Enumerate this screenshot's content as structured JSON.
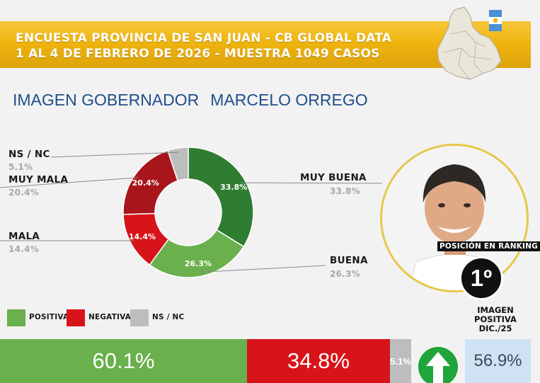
{
  "header": {
    "line1": "ENCUESTA PROVINCIA DE SAN JUAN - CB GLOBAL DATA",
    "line2": "1 AL 4 DE FEBRERO DE 2026 - MUESTRA 1049 CASOS"
  },
  "title": {
    "part1": "IMAGEN GOBERNADOR",
    "part2": "MARCELO ORREGO"
  },
  "colors": {
    "header_yellow": "#f0b40f",
    "muy_buena": "#2e7d32",
    "buena": "#6ab04c",
    "mala": "#d7141a",
    "muy_mala": "#a8151b",
    "ns_nc": "#bdbdbd",
    "title_blue": "#1f4e8c",
    "previous_box": "#cfe2f3"
  },
  "icons": [
    "san-juan-map-icon",
    "flag-icon",
    "up-arrow-icon"
  ],
  "chart_data": [
    {
      "type": "pie",
      "donut": true,
      "slices": [
        {
          "label": "MUY BUENA",
          "value": 33.8,
          "value_label": "33.8%",
          "color": "#2e7d32"
        },
        {
          "label": "BUENA",
          "value": 26.3,
          "value_label": "26.3%",
          "color": "#6ab04c"
        },
        {
          "label": "MALA",
          "value": 14.4,
          "value_label": "14.4%",
          "color": "#d7141a"
        },
        {
          "label": "MUY MALA",
          "value": 20.4,
          "value_label": "20.4%",
          "color": "#a8151b"
        },
        {
          "label": "NS / NC",
          "value": 5.1,
          "value_label": "5.1%",
          "color": "#bdbdbd"
        }
      ]
    },
    {
      "type": "bar",
      "stacked": true,
      "orientation": "horizontal",
      "legend": [
        {
          "label": "POSITIVA",
          "color": "#6ab04c"
        },
        {
          "label": "NEGATIVA",
          "color": "#d7141a"
        },
        {
          "label": "NS / NC",
          "color": "#bdbdbd"
        }
      ],
      "segments": [
        {
          "name": "POSITIVA",
          "value": 60.1,
          "value_label": "60.1%",
          "color": "#6ab04c"
        },
        {
          "name": "NEGATIVA",
          "value": 34.8,
          "value_label": "34.8%",
          "color": "#d7141a"
        },
        {
          "name": "NS / NC",
          "value": 5.1,
          "value_label": "5.1%",
          "color": "#bdbdbd"
        }
      ]
    }
  ],
  "ranking": {
    "label": "POSICIÓN EN RANKING",
    "position": "1º"
  },
  "previous": {
    "line1": "IMAGEN",
    "line2": "POSITIVA",
    "line3": "DIC./25",
    "value_label": "56.9%"
  }
}
